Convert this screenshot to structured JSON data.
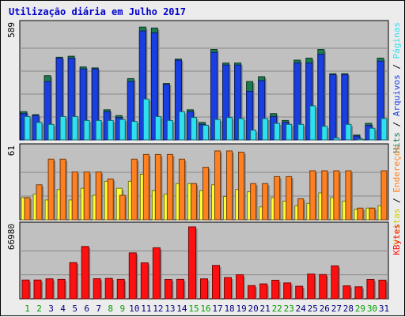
{
  "title": "Utilização diária em Julho 2017",
  "colors": {
    "hits": "#1d7a4f",
    "arquivos": "#1a3fe0",
    "paginas": "#30e0f0",
    "visitas": "#ffff30",
    "enderecos": "#ff8020",
    "kbytes": "#ff1010",
    "panel_bg": "#c0c0c0",
    "frame_bg": "#ececec",
    "title": "#0000cc",
    "day_normal": "#000080",
    "day_weekend": "#00a000"
  },
  "chart_data": [
    {
      "type": "bar",
      "panel": "top",
      "ymax_label": "589",
      "ylim": [
        0,
        589
      ],
      "right_labels": [
        {
          "text": "Hits",
          "color": "#1d7a4f"
        },
        {
          "text": " / ",
          "color": "#000000"
        },
        {
          "text": "Arquivos",
          "color": "#1a3fe0"
        },
        {
          "text": " / ",
          "color": "#000000"
        },
        {
          "text": "Páginas",
          "color": "#30e0f0"
        }
      ],
      "categories": [
        "1",
        "2",
        "3",
        "4",
        "5",
        "6",
        "7",
        "8",
        "9",
        "10",
        "11",
        "12",
        "13",
        "14",
        "15",
        "16",
        "17",
        "18",
        "19",
        "20",
        "21",
        "22",
        "23",
        "24",
        "25",
        "26",
        "27",
        "28",
        "29",
        "30",
        "31"
      ],
      "series": [
        {
          "name": "Hits",
          "values": [
            145,
            130,
            330,
            425,
            430,
            375,
            370,
            155,
            125,
            315,
            580,
            575,
            290,
            415,
            155,
            90,
            465,
            395,
            395,
            300,
            325,
            135,
            100,
            410,
            420,
            465,
            340,
            340,
            25,
            85,
            420
          ]
        },
        {
          "name": "Arquivos",
          "values": [
            135,
            125,
            300,
            420,
            420,
            365,
            365,
            145,
            115,
            300,
            560,
            550,
            285,
            410,
            145,
            80,
            450,
            385,
            385,
            250,
            305,
            120,
            90,
            395,
            395,
            440,
            335,
            335,
            20,
            75,
            405
          ]
        },
        {
          "name": "Páginas",
          "values": [
            120,
            90,
            80,
            120,
            120,
            100,
            100,
            100,
            105,
            95,
            210,
            120,
            100,
            145,
            115,
            75,
            105,
            115,
            110,
            50,
            110,
            85,
            80,
            80,
            175,
            70,
            10,
            80,
            5,
            60,
            110
          ]
        }
      ]
    },
    {
      "type": "bar",
      "panel": "middle",
      "ymax_label": "61",
      "ylim": [
        0,
        61
      ],
      "right_labels": [
        {
          "text": "Visitas",
          "color": "#cccc00"
        },
        {
          "text": " / ",
          "color": "#000000"
        },
        {
          "text": "Endereços",
          "color": "#ff8020"
        }
      ],
      "categories": [
        "1",
        "2",
        "3",
        "4",
        "5",
        "6",
        "7",
        "8",
        "9",
        "10",
        "11",
        "12",
        "13",
        "14",
        "15",
        "16",
        "17",
        "18",
        "19",
        "20",
        "21",
        "22",
        "23",
        "24",
        "25",
        "26",
        "27",
        "28",
        "29",
        "30",
        "31"
      ],
      "series": [
        {
          "name": "Visitas",
          "values": [
            19,
            22,
            17,
            26,
            17,
            27,
            21,
            33,
            27,
            33,
            39,
            25,
            22,
            31,
            31,
            25,
            30,
            20,
            26,
            24,
            11,
            19,
            16,
            12,
            14,
            23,
            19,
            16,
            9,
            10,
            12
          ]
        },
        {
          "name": "Endereços",
          "values": [
            19,
            30,
            52,
            52,
            41,
            41,
            41,
            35,
            21,
            52,
            56,
            56,
            56,
            52,
            31,
            45,
            59,
            59,
            58,
            31,
            31,
            37,
            37,
            18,
            42,
            42,
            42,
            42,
            10,
            10,
            42
          ]
        }
      ]
    },
    {
      "type": "bar",
      "panel": "bottom",
      "ymax_label": "66980",
      "ylim": [
        0,
        66980
      ],
      "right_labels": [
        {
          "text": "KBytes",
          "color": "#ff1010"
        }
      ],
      "categories": [
        "1",
        "2",
        "3",
        "4",
        "5",
        "6",
        "7",
        "8",
        "9",
        "10",
        "11",
        "12",
        "13",
        "14",
        "15",
        "16",
        "17",
        "18",
        "19",
        "20",
        "21",
        "22",
        "23",
        "24",
        "25",
        "26",
        "27",
        "28",
        "29",
        "30",
        "31"
      ],
      "series": [
        {
          "name": "KBytes",
          "values": [
            17500,
            17500,
            18600,
            18100,
            33700,
            48700,
            18700,
            19000,
            18100,
            42800,
            33500,
            47500,
            18000,
            18100,
            66980,
            18600,
            31100,
            19800,
            22400,
            12300,
            13900,
            17300,
            14800,
            11700,
            23100,
            22600,
            30700,
            12100,
            11200,
            18000,
            17400
          ]
        }
      ]
    }
  ],
  "x_axis": {
    "days": [
      "1",
      "2",
      "3",
      "4",
      "5",
      "6",
      "7",
      "8",
      "9",
      "10",
      "11",
      "12",
      "13",
      "14",
      "15",
      "16",
      "17",
      "18",
      "19",
      "20",
      "21",
      "22",
      "23",
      "24",
      "25",
      "26",
      "27",
      "28",
      "29",
      "30",
      "31"
    ],
    "weekend_days": [
      "1",
      "2",
      "8",
      "9",
      "15",
      "16",
      "22",
      "23",
      "29",
      "30"
    ]
  }
}
